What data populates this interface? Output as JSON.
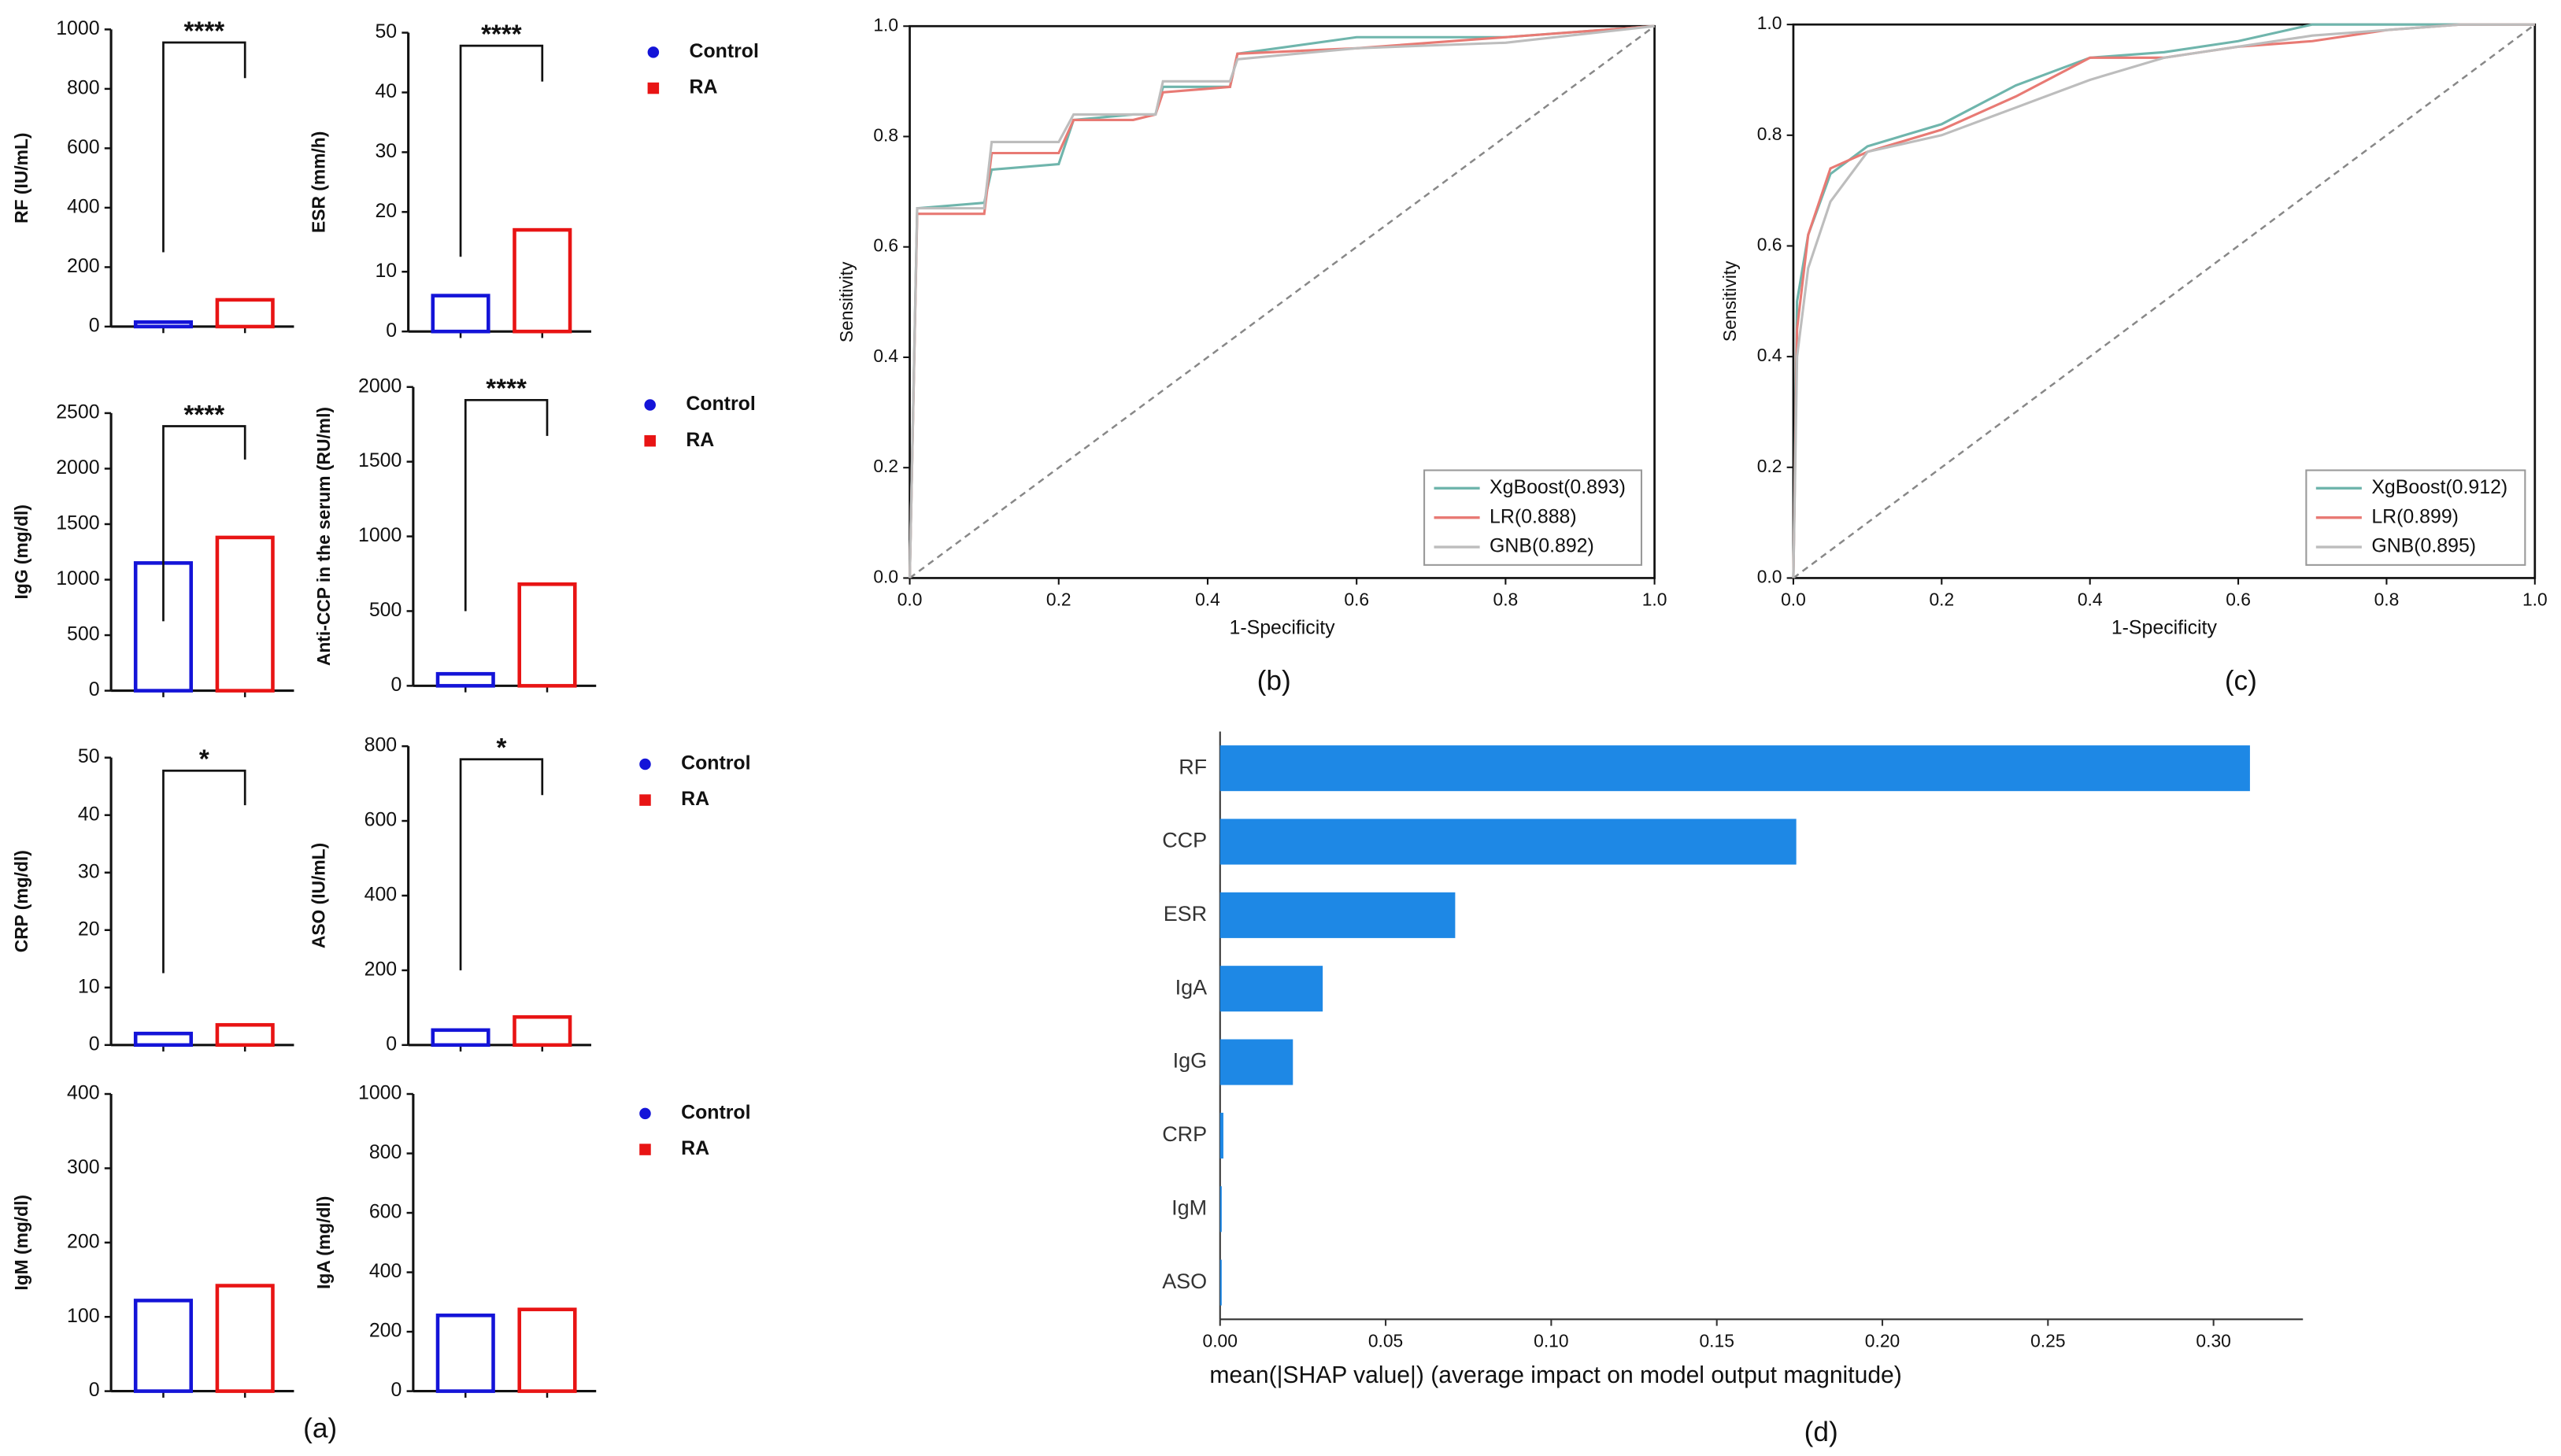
{
  "figure_labels": [
    "(a)",
    "(b)",
    "(c)",
    "(d)"
  ],
  "chart_data": [
    {
      "type": "bar",
      "ylabel": "RF (IU/mL)",
      "ylim": [
        0,
        1000
      ],
      "yticks": [
        0,
        200,
        400,
        600,
        800,
        1000
      ],
      "annotation": "****",
      "series": [
        {
          "color": "#1414d8",
          "values": [
            15
          ]
        },
        {
          "color": "#e81414",
          "values": [
            90
          ]
        }
      ]
    },
    {
      "type": "bar",
      "ylabel": "ESR (mm/h)",
      "ylim": [
        0,
        50
      ],
      "yticks": [
        0,
        10,
        20,
        30,
        40,
        50
      ],
      "annotation": "****",
      "series": [
        {
          "name": "Control",
          "color": "#1414d8",
          "values": [
            6
          ]
        },
        {
          "name": "RA",
          "color": "#e81414",
          "values": [
            17
          ]
        }
      ]
    },
    {
      "type": "bar",
      "ylabel": "IgG (mg/dl)",
      "ylim": [
        0,
        2500
      ],
      "yticks": [
        0,
        500,
        1000,
        1500,
        2000,
        2500
      ],
      "annotation": "****",
      "series": [
        {
          "color": "#1414d8",
          "values": [
            1150
          ]
        },
        {
          "color": "#e81414",
          "values": [
            1380
          ]
        }
      ]
    },
    {
      "type": "bar",
      "ylabel": "Anti-CCP in the serum (RU/ml)",
      "ylim": [
        0,
        2000
      ],
      "yticks": [
        0,
        500,
        1000,
        1500,
        2000
      ],
      "annotation": "****",
      "series": [
        {
          "name": "Control",
          "color": "#1414d8",
          "values": [
            80
          ]
        },
        {
          "name": "RA",
          "color": "#e81414",
          "values": [
            680
          ]
        }
      ]
    },
    {
      "type": "bar",
      "ylabel": "CRP (mg/dl)",
      "ylim": [
        0,
        50
      ],
      "yticks": [
        0,
        10,
        20,
        30,
        40,
        50
      ],
      "annotation": "*",
      "series": [
        {
          "color": "#1414d8",
          "values": [
            2
          ]
        },
        {
          "color": "#e81414",
          "values": [
            3.5
          ]
        }
      ]
    },
    {
      "type": "bar",
      "ylabel": "ASO (IU/mL)",
      "ylim": [
        0,
        800
      ],
      "yticks": [
        0,
        200,
        400,
        600,
        800
      ],
      "annotation": "*",
      "series": [
        {
          "name": "Control",
          "color": "#1414d8",
          "values": [
            40
          ]
        },
        {
          "name": "RA",
          "color": "#e81414",
          "values": [
            75
          ]
        }
      ]
    },
    {
      "type": "bar",
      "ylabel": "IgM (mg/dl)",
      "ylim": [
        0,
        400
      ],
      "yticks": [
        0,
        100,
        200,
        300,
        400
      ],
      "series": [
        {
          "color": "#1414d8",
          "values": [
            122
          ]
        },
        {
          "color": "#e81414",
          "values": [
            142
          ]
        }
      ]
    },
    {
      "type": "bar",
      "ylabel": "IgA (mg/dl)",
      "ylim": [
        0,
        1000
      ],
      "yticks": [
        0,
        200,
        400,
        600,
        800,
        1000
      ],
      "series": [
        {
          "name": "Control",
          "color": "#1414d8",
          "values": [
            255
          ]
        },
        {
          "name": "RA",
          "color": "#e81414",
          "values": [
            275
          ]
        }
      ]
    },
    {
      "type": "line",
      "xlabel": "1-Specificity",
      "ylabel": "Sensitivity",
      "xlim": [
        0,
        1
      ],
      "ylim": [
        0,
        1
      ],
      "xticks": [
        {
          "value": 0,
          "label": "0.0"
        },
        0.2,
        0.4,
        0.6,
        0.8,
        {
          "value": 1,
          "label": "1.0"
        }
      ],
      "yticks": [
        {
          "value": 0,
          "label": "0.0"
        },
        0.2,
        0.4,
        0.6,
        0.8,
        {
          "value": 1,
          "label": "1.0"
        }
      ],
      "legend": "lower right",
      "x": [
        0,
        0.01,
        0.1,
        0.11,
        0.2,
        0.22,
        0.3,
        0.33,
        0.34,
        0.43,
        0.44,
        0.6,
        0.8,
        1.0
      ],
      "series": [
        {
          "name": "XgBoost(0.893)",
          "color": "#6fb5ac",
          "values": [
            0,
            0.67,
            0.68,
            0.74,
            0.75,
            0.83,
            0.84,
            0.84,
            0.89,
            0.89,
            0.95,
            0.98,
            0.98,
            1.0
          ]
        },
        {
          "name": "LR(0.888)",
          "color": "#e87a74",
          "values": [
            0,
            0.66,
            0.66,
            0.77,
            0.77,
            0.83,
            0.83,
            0.84,
            0.88,
            0.89,
            0.95,
            0.96,
            0.98,
            1.0
          ]
        },
        {
          "name": "GNB(0.892)",
          "color": "#bdbdbd",
          "values": [
            0,
            0.67,
            0.67,
            0.79,
            0.79,
            0.84,
            0.84,
            0.84,
            0.9,
            0.9,
            0.94,
            0.96,
            0.97,
            1.0
          ]
        }
      ]
    },
    {
      "type": "line",
      "xlabel": "1-Specificity",
      "ylabel": "Sensitivity",
      "xlim": [
        0,
        1
      ],
      "ylim": [
        0,
        1
      ],
      "xticks": [
        {
          "value": 0,
          "label": "0.0"
        },
        0.2,
        0.4,
        0.6,
        0.8,
        {
          "value": 1,
          "label": "1.0"
        }
      ],
      "yticks": [
        {
          "value": 0,
          "label": "0.0"
        },
        0.2,
        0.4,
        0.6,
        0.8,
        {
          "value": 1,
          "label": "1.0"
        }
      ],
      "legend": "lower right",
      "x": [
        0,
        0.005,
        0.02,
        0.05,
        0.1,
        0.2,
        0.3,
        0.4,
        0.5,
        0.6,
        0.7,
        0.8,
        0.9,
        1.0
      ],
      "series": [
        {
          "name": "XgBoost(0.912)",
          "color": "#6fb5ac",
          "values": [
            0,
            0.5,
            0.62,
            0.73,
            0.78,
            0.82,
            0.89,
            0.94,
            0.95,
            0.97,
            1.0,
            1.0,
            1.0,
            1.0
          ]
        },
        {
          "name": "LR(0.899)",
          "color": "#e87a74",
          "values": [
            0,
            0.45,
            0.62,
            0.74,
            0.77,
            0.81,
            0.87,
            0.94,
            0.94,
            0.96,
            0.97,
            0.99,
            1.0,
            1.0
          ]
        },
        {
          "name": "GNB(0.895)",
          "color": "#bdbdbd",
          "values": [
            0,
            0.4,
            0.56,
            0.68,
            0.77,
            0.8,
            0.85,
            0.9,
            0.94,
            0.96,
            0.98,
            0.99,
            1.0,
            1.0
          ]
        }
      ]
    },
    {
      "type": "bar",
      "horizontal": true,
      "xlabel": "mean(|SHAP value|) (average impact on model output magnitude)",
      "color": "#1e88e5",
      "categories": [
        "RF",
        "CCP",
        "ESR",
        "IgA",
        "IgG",
        "CRP",
        "IgM",
        "ASO"
      ],
      "values": [
        0.311,
        0.174,
        0.071,
        0.031,
        0.022,
        0.001,
        0.0005,
        0.0004
      ],
      "xlim": [
        0,
        0.327
      ],
      "xticks": [
        {
          "value": 0,
          "label": "0.00"
        },
        0.05,
        {
          "value": 0.1,
          "label": "0.10"
        },
        0.15,
        {
          "value": 0.2,
          "label": "0.20"
        },
        0.25,
        {
          "value": 0.3,
          "label": "0.30"
        }
      ]
    }
  ]
}
